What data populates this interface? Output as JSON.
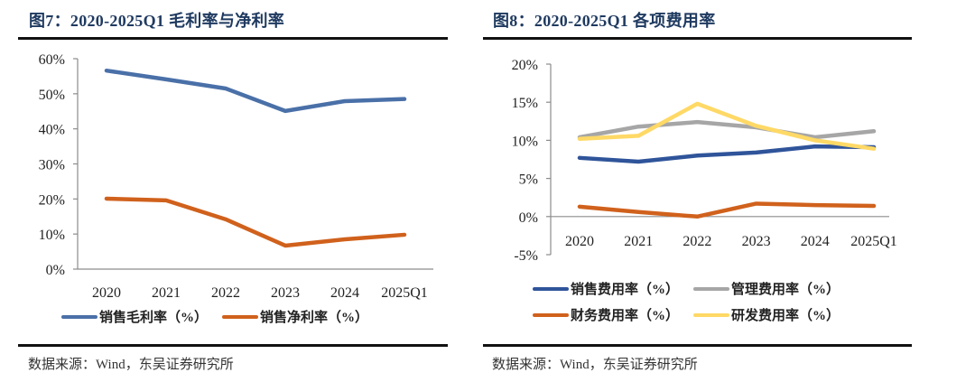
{
  "left_figure": {
    "title": "图7：2020-2025Q1 毛利率与净利率",
    "source": "数据来源：Wind，东吴证券研究所"
  },
  "right_figure": {
    "title": "图8：2020-2025Q1 各项费用率",
    "source": "数据来源：Wind，东吴证券研究所"
  },
  "chart_data": [
    {
      "type": "line",
      "title": "2020-2025Q1 毛利率与净利率",
      "xlabel": "",
      "ylabel": "",
      "categories": [
        "2020",
        "2021",
        "2022",
        "2023",
        "2024",
        "2025Q1"
      ],
      "ylim": [
        0,
        60
      ],
      "yticks": [
        0,
        10,
        20,
        30,
        40,
        50,
        60
      ],
      "ytick_labels": [
        "0%",
        "10%",
        "20%",
        "30%",
        "40%",
        "50%",
        "60%"
      ],
      "grid": false,
      "legend_position": "bottom",
      "series": [
        {
          "name": "销售毛利率（%）",
          "color": "#4a70a8",
          "values": [
            56.6,
            54.1,
            51.5,
            45.1,
            47.9,
            48.5
          ]
        },
        {
          "name": "销售净利率（%）",
          "color": "#d0611c",
          "values": [
            20.1,
            19.6,
            14.2,
            6.7,
            8.5,
            9.8
          ]
        }
      ]
    },
    {
      "type": "line",
      "title": "2020-2025Q1 各项费用率",
      "xlabel": "",
      "ylabel": "",
      "categories": [
        "2020",
        "2021",
        "2022",
        "2023",
        "2024",
        "2025Q1"
      ],
      "ylim": [
        -5,
        20
      ],
      "yticks": [
        -5,
        0,
        5,
        10,
        15,
        20
      ],
      "ytick_labels": [
        "-5%",
        "0%",
        "5%",
        "10%",
        "15%",
        "20%"
      ],
      "grid": false,
      "legend_position": "bottom",
      "series": [
        {
          "name": "销售费用率（%）",
          "color": "#2f549a",
          "values": [
            7.7,
            7.2,
            8.0,
            8.4,
            9.2,
            9.1
          ]
        },
        {
          "name": "管理费用率（%）",
          "color": "#a6a6a6",
          "values": [
            10.4,
            11.8,
            12.4,
            11.7,
            10.4,
            11.2
          ]
        },
        {
          "name": "财务费用率（%）",
          "color": "#d0611c",
          "values": [
            1.3,
            0.6,
            0.0,
            1.7,
            1.5,
            1.4
          ]
        },
        {
          "name": "研发费用率（%）",
          "color": "#ffd966",
          "values": [
            10.2,
            10.6,
            14.8,
            11.9,
            10.0,
            8.9
          ]
        }
      ]
    }
  ]
}
